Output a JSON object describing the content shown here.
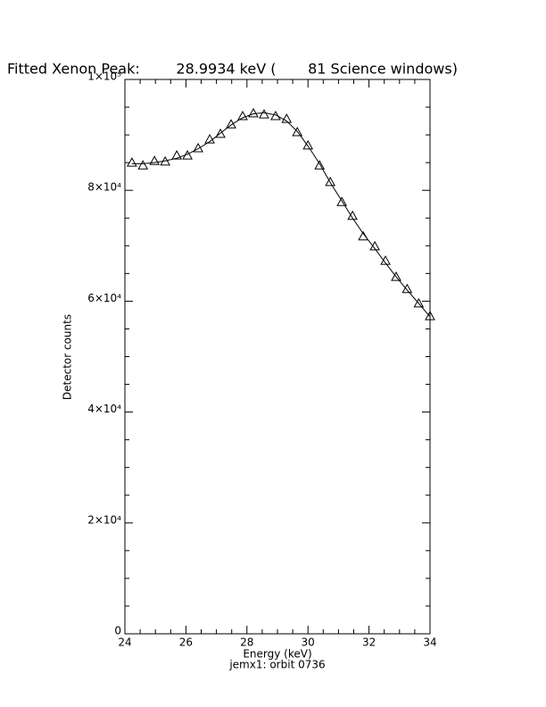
{
  "chart_data": {
    "type": "scatter",
    "title": "Fitted Xenon Peak:        28.9934 keV (       81 Science windows)",
    "x_label": "Energy (keV)",
    "y_label": "Detector counts",
    "caption": "jemx1: orbit 0736",
    "xlim": [
      24,
      34
    ],
    "ylim": [
      0,
      100000
    ],
    "xticks": [
      24,
      26,
      28,
      30,
      32,
      34
    ],
    "yticks": [
      0,
      {
        "value": 20000,
        "label": "2×10⁴"
      },
      {
        "value": 40000,
        "label": "4×10⁴"
      },
      {
        "value": 60000,
        "label": "6×10⁴"
      },
      {
        "value": 80000,
        "label": "8×10⁴"
      },
      {
        "value": 100000,
        "label": "1×10⁵"
      }
    ],
    "minor_xticks": [
      24.5,
      25,
      25.5,
      26.5,
      27,
      27.5,
      28.5,
      29,
      29.5,
      30.5,
      31,
      31.5,
      32.5,
      33,
      33.5
    ],
    "minor_yticks": [
      5000,
      10000,
      15000,
      25000,
      30000,
      35000,
      45000,
      50000,
      55000,
      65000,
      70000,
      75000,
      85000,
      90000,
      95000
    ],
    "x": [
      24.23,
      24.59,
      24.97,
      25.32,
      25.7,
      26.05,
      26.4,
      26.78,
      27.13,
      27.48,
      27.86,
      28.21,
      28.56,
      28.94,
      29.3,
      29.65,
      30.0,
      30.38,
      30.73,
      31.11,
      31.46,
      31.81,
      32.19,
      32.54,
      32.89,
      33.25,
      33.63,
      34.0
    ],
    "series": [
      {
        "style": "markers",
        "color": "#000000",
        "values": [
          85000,
          84500,
          85300,
          85200,
          86300,
          86300,
          87600,
          89200,
          90200,
          91900,
          93400,
          93900,
          93700,
          93400,
          92900,
          90500,
          88100,
          84500,
          81500,
          77900,
          75400,
          71700,
          69900,
          67300,
          64400,
          62200,
          59600,
          57300
        ]
      },
      {
        "style": "line",
        "color": "#000000",
        "values": [
          84800,
          84800,
          85000,
          85300,
          85800,
          86500,
          87500,
          88800,
          90300,
          91800,
          93100,
          93800,
          94000,
          93600,
          92500,
          90600,
          88000,
          84800,
          81400,
          78100,
          75000,
          72200,
          69500,
          66900,
          64400,
          62000,
          59600,
          57200
        ]
      }
    ]
  }
}
